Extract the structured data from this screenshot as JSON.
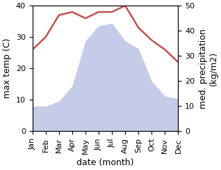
{
  "chart_data": {
    "type": "line",
    "categories": [
      "Jan",
      "Feb",
      "Mar",
      "Apr",
      "May",
      "Jun",
      "Jul",
      "Aug",
      "Sep",
      "Oct",
      "Nov",
      "Dec"
    ],
    "series": [
      {
        "type": "line",
        "color": "#c0504d",
        "values": [
          26,
          30,
          37,
          38,
          36,
          38,
          38,
          40,
          33,
          29,
          26,
          22
        ]
      },
      {
        "type": "area",
        "axis": "y2",
        "color": "#c5cce8",
        "values": [
          10,
          10,
          12,
          18,
          36,
          42,
          43,
          36,
          33,
          20,
          14,
          13
        ]
      }
    ],
    "xlabel": "date (month)",
    "ylabel": "max temp (C)",
    "y2label": "med. precipitation\n(kg/m2)",
    "ylim": [
      0,
      40
    ],
    "yticks": [
      0,
      10,
      20,
      30,
      40
    ],
    "y2lim": [
      0,
      50
    ],
    "y2ticks": [
      0,
      10,
      20,
      30,
      40,
      50
    ],
    "grid": false
  }
}
